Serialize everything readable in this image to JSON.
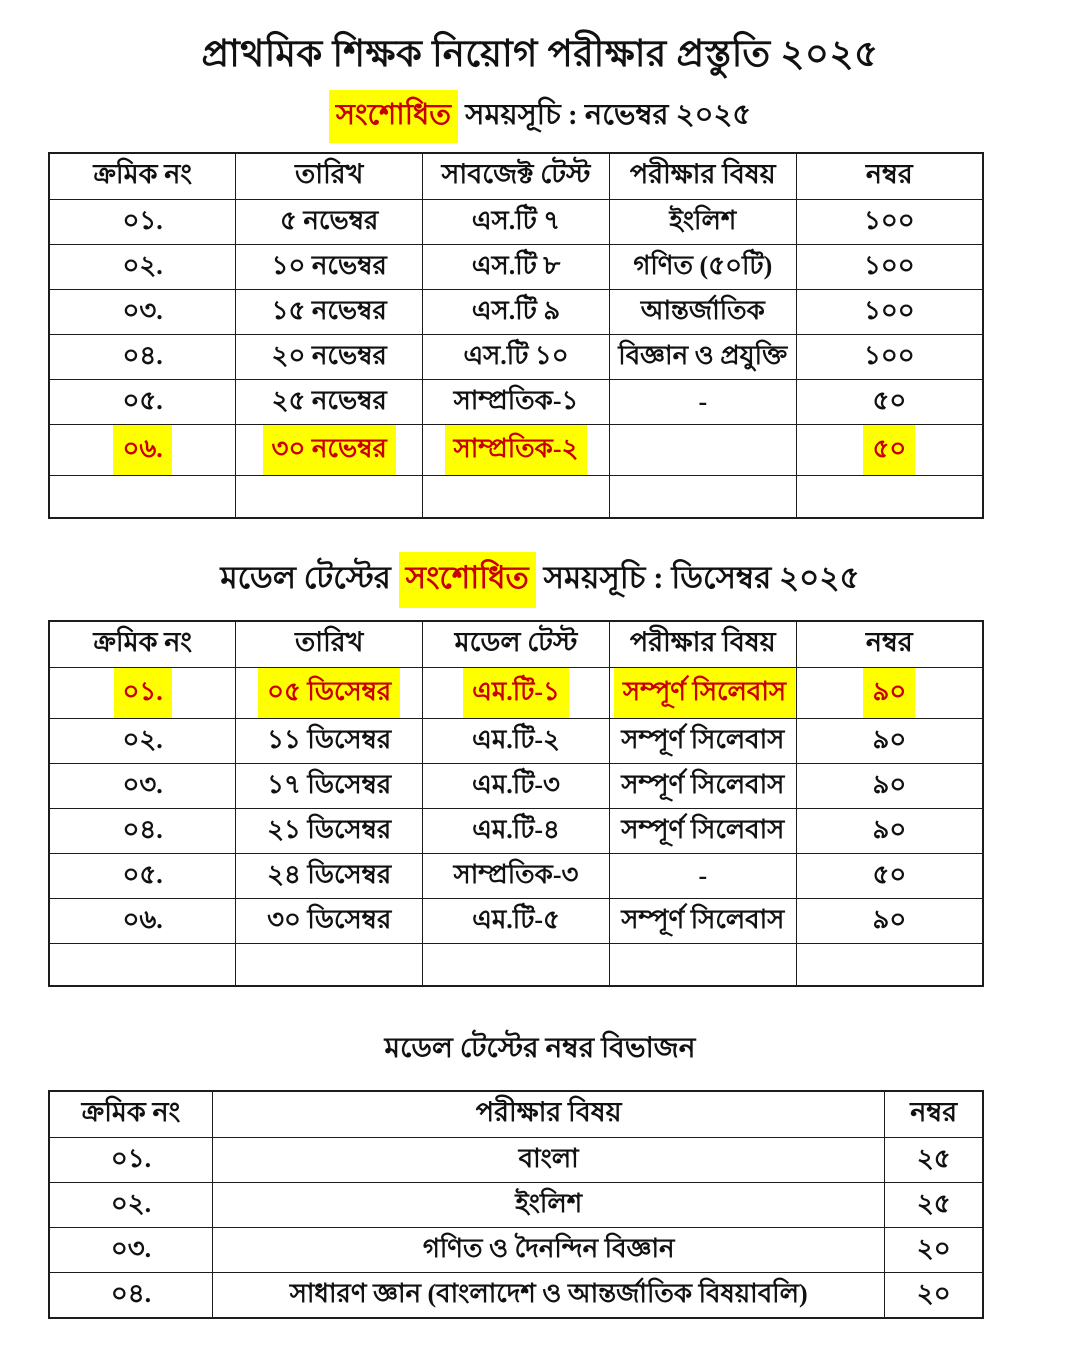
{
  "colors": {
    "highlight_bg": "#ffff00",
    "highlight_text": "#c80000",
    "text_color": "#111111",
    "border_color": "#1c1c1c",
    "background": "#ffffff"
  },
  "header": {
    "title": "প্রাথমিক শিক্ষক নিয়োগ পরীক্ষার প্রস্তুতি ২০২৫",
    "subtitle_highlight": "সংশোধিত",
    "subtitle_rest": " সময়সূচি : নভেম্বর ২০২৫"
  },
  "table_november": {
    "headers": [
      "ক্রমিক নং",
      "তারিখ",
      "সাবজেক্ট টেস্ট",
      "পরীক্ষার বিষয়",
      "নম্বর"
    ],
    "rows": [
      [
        "০১.",
        "৫ নভেম্বর",
        "এস.টি ৭",
        "ইংলিশ",
        "১০০"
      ],
      [
        "০২.",
        "১০ নভেম্বর",
        "এস.টি ৮",
        "গণিত (৫০টি)",
        "১০০"
      ],
      [
        "০৩.",
        "১৫ নভেম্বর",
        "এস.টি ৯",
        "আন্তর্জাতিক",
        "১০০"
      ],
      [
        "০৪.",
        "২০ নভেম্বর",
        "এস.টি ১০",
        "বিজ্ঞান ও প্রযুক্তি",
        "১০০"
      ],
      [
        "০৫.",
        "২৫ নভেম্বর",
        "সাম্প্রতিক-১",
        "-",
        "৫০"
      ],
      [
        {
          "t": "০৬.",
          "hl": true
        },
        {
          "t": "৩০ নভেম্বর",
          "hl": true
        },
        {
          "t": "সাম্প্রতিক-২",
          "hl": true
        },
        "",
        {
          "t": "৫০",
          "hl": true
        }
      ],
      [
        "",
        "",
        "",
        "",
        ""
      ]
    ]
  },
  "section_december": {
    "title_pre": "মডেল টেস্টের ",
    "title_highlight": "সংশোধিত",
    "title_rest": " সময়সূচি : ডিসেম্বর ২০২৫"
  },
  "table_december": {
    "headers": [
      "ক্রমিক নং",
      "তারিখ",
      "মডেল টেস্ট",
      "পরীক্ষার বিষয়",
      "নম্বর"
    ],
    "rows": [
      [
        {
          "t": "০১.",
          "hl": true
        },
        {
          "t": "০৫ ডিসেম্বর",
          "hl": true
        },
        {
          "t": "এম.টি-১",
          "hl": true
        },
        {
          "t": "সম্পূর্ণ সিলেবাস",
          "hl": true
        },
        {
          "t": "৯০",
          "hl": true
        }
      ],
      [
        "০২.",
        "১১ ডিসেম্বর",
        "এম.টি-২",
        "সম্পূর্ণ সিলেবাস",
        "৯০"
      ],
      [
        "০৩.",
        "১৭ ডিসেম্বর",
        "এম.টি-৩",
        "সম্পূর্ণ সিলেবাস",
        "৯০"
      ],
      [
        "০৪.",
        "২১ ডিসেম্বর",
        "এম.টি-৪",
        "সম্পূর্ণ সিলেবাস",
        "৯০"
      ],
      [
        "০৫.",
        "২৪ ডিসেম্বর",
        "সাম্প্রতিক-৩",
        "-",
        "৫০"
      ],
      [
        "০৬.",
        "৩০ ডিসেম্বর",
        "এম.টি-৫",
        "সম্পূর্ণ সিলেবাস",
        "৯০"
      ],
      [
        "",
        "",
        "",
        "",
        ""
      ]
    ]
  },
  "section_marks": {
    "title": "মডেল টেস্টের নম্বর বিভাজন"
  },
  "table_marks": {
    "headers": [
      "ক্রমিক নং",
      "পরীক্ষার বিষয়",
      "নম্বর"
    ],
    "rows": [
      [
        "০১.",
        "বাংলা",
        "২৫"
      ],
      [
        "০২.",
        "ইংলিশ",
        "২৫"
      ],
      [
        "০৩.",
        "গণিত ও দৈনন্দিন বিজ্ঞান",
        "২০"
      ],
      [
        "০৪.",
        "সাধারণ জ্ঞান (বাংলাদেশ ও আন্তর্জাতিক বিষয়াবলি)",
        "২০"
      ]
    ]
  }
}
